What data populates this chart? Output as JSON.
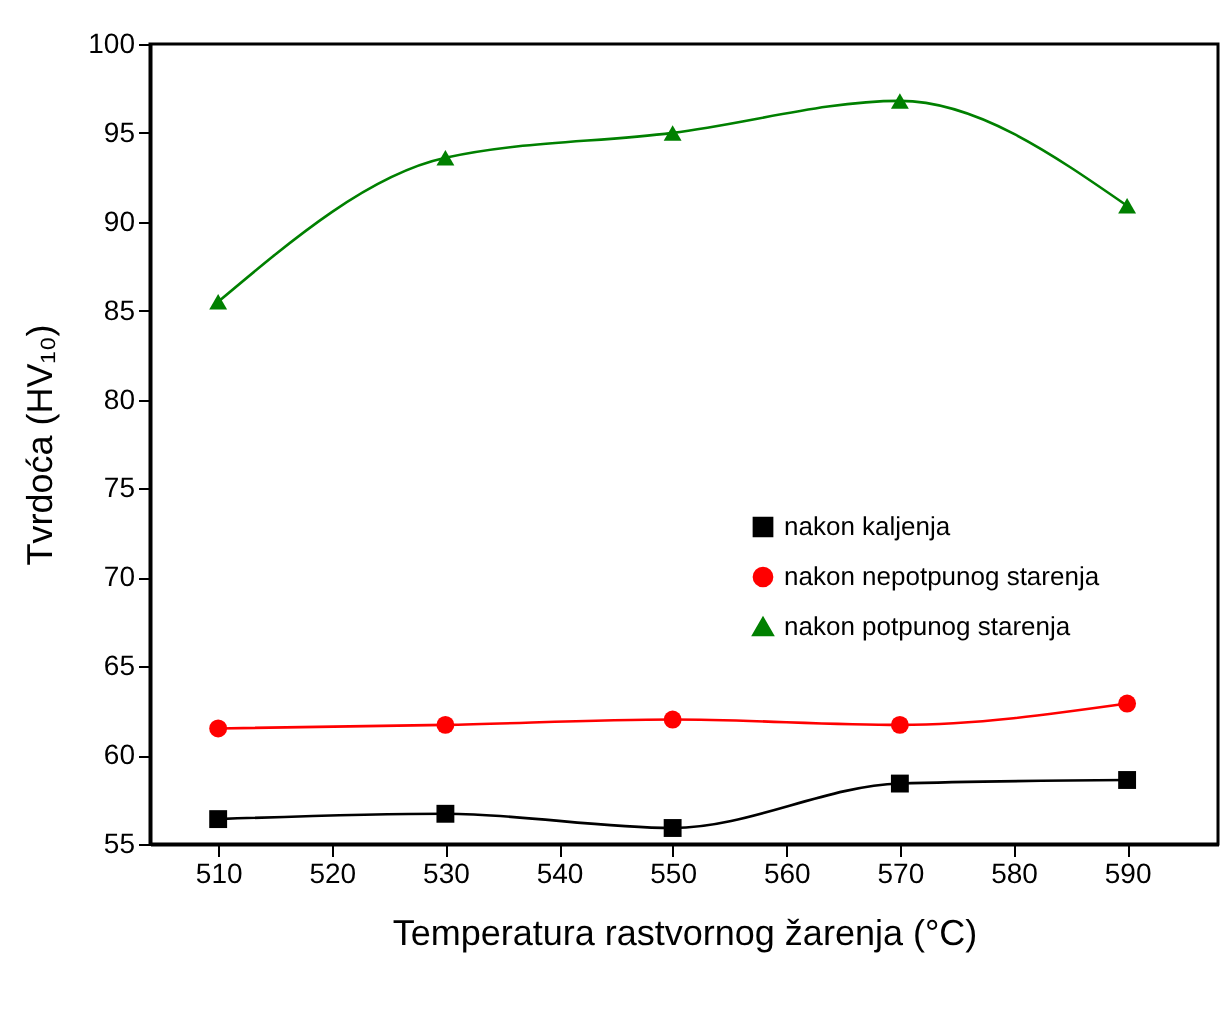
{
  "chart_data": {
    "type": "line",
    "xlabel": "Temperatura rastvornog žarenja (°C)",
    "ylabel": "Tvrdoća (HV₁₀)",
    "x": [
      510,
      530,
      550,
      570,
      590
    ],
    "series": [
      {
        "name": "nakon kaljenja",
        "color": "#000000",
        "marker": "square",
        "values": [
          56.4,
          56.7,
          55.9,
          58.4,
          58.6
        ]
      },
      {
        "name": "nakon nepotpunog starenja",
        "color": "#ff0000",
        "marker": "circle",
        "values": [
          61.5,
          61.7,
          62.0,
          61.7,
          62.9
        ]
      },
      {
        "name": "nakon potpunog starenja",
        "color": "#008000",
        "marker": "triangle",
        "values": [
          85.5,
          93.6,
          95.0,
          96.8,
          90.9
        ]
      }
    ],
    "xlim": [
      504,
      598
    ],
    "xticks": [
      510,
      520,
      530,
      540,
      550,
      560,
      570,
      580,
      590
    ],
    "ylim": [
      55,
      100
    ],
    "yticks": [
      55,
      60,
      65,
      70,
      75,
      80,
      85,
      90,
      95,
      100
    ],
    "grid": false,
    "legend": "right",
    "line_style": "solid"
  }
}
